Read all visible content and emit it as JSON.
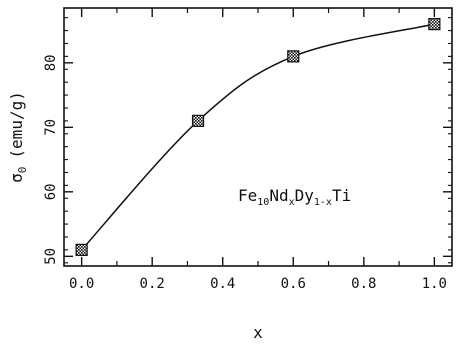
{
  "chart_data": {
    "type": "line",
    "x": [
      0.0,
      0.33,
      0.6,
      1.0
    ],
    "series": [
      {
        "values": [
          51,
          71,
          81,
          86
        ],
        "marker": "hatched-square",
        "color": "#111111"
      }
    ],
    "xlabel": "x",
    "ylabel_symbol": "σ",
    "ylabel_subscript": "0",
    "ylabel_unit": "(emu/g)",
    "xlim": [
      -0.05,
      1.05
    ],
    "ylim": [
      48.5,
      88.5
    ],
    "xticks": [
      0.0,
      0.2,
      0.4,
      0.6,
      0.8,
      1.0
    ],
    "xtick_labels": [
      "0.0",
      "0.2",
      "0.4",
      "0.6",
      "0.8",
      "1.0"
    ],
    "yticks": [
      50,
      60,
      70,
      80
    ],
    "ytick_labels": [
      "50",
      "60",
      "70",
      "80"
    ],
    "grid": false,
    "annotation": {
      "parts": [
        {
          "text": "Fe",
          "style": "normal"
        },
        {
          "text": "10",
          "style": "sub"
        },
        {
          "text": "Nd",
          "style": "normal"
        },
        {
          "text": "x",
          "style": "sub"
        },
        {
          "text": "Dy",
          "style": "normal"
        },
        {
          "text": "1-x",
          "style": "sub"
        },
        {
          "text": "Ti",
          "style": "normal"
        }
      ]
    }
  }
}
